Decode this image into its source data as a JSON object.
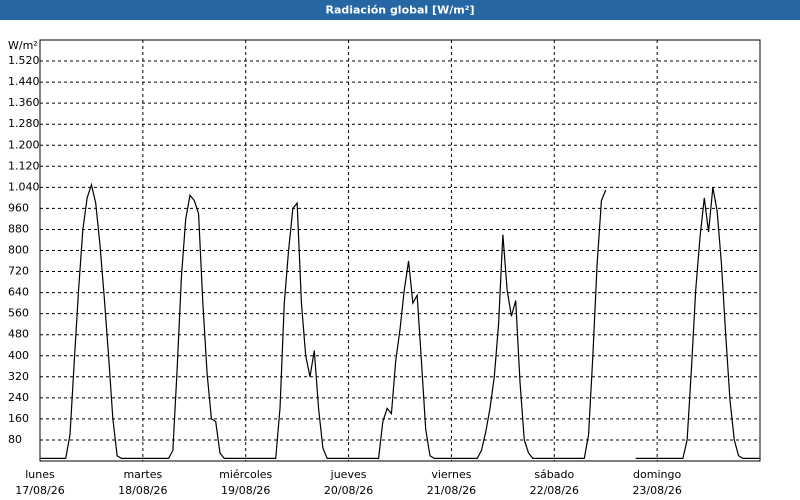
{
  "chart_data": {
    "type": "line",
    "title": "Radiación global [W/m²]",
    "y_label": "W/m²",
    "x": [
      0,
      1,
      2,
      3,
      4,
      5,
      6,
      7,
      8,
      9,
      10,
      11,
      12,
      13,
      14,
      15,
      16,
      17,
      18,
      19,
      20,
      21,
      22,
      23,
      24,
      25,
      26,
      27,
      28,
      29,
      30,
      31,
      32,
      33,
      34,
      35,
      36,
      37,
      38,
      39,
      40,
      41,
      42,
      43,
      44,
      45,
      46,
      47,
      48,
      49,
      50,
      51,
      52,
      53,
      54,
      55,
      56,
      57,
      58,
      59,
      60,
      61,
      62,
      63,
      64,
      65,
      66,
      67,
      68,
      69,
      70,
      71,
      72,
      73,
      74,
      75,
      76,
      77,
      78,
      79,
      80,
      81,
      82,
      83,
      84,
      85,
      86,
      87,
      88,
      89,
      90,
      91,
      92,
      93,
      94,
      95,
      96,
      97,
      98,
      99,
      100,
      101,
      102,
      103,
      104,
      105,
      106,
      107,
      108,
      109,
      110,
      111,
      112,
      113,
      114,
      115,
      116,
      117,
      118,
      119,
      120,
      121,
      122,
      123,
      124,
      125,
      126,
      127,
      128,
      129,
      130,
      131,
      132,
      133,
      134,
      135,
      136,
      137,
      138,
      139,
      140,
      141,
      142,
      143,
      144,
      145,
      146,
      147,
      148,
      149,
      150,
      151,
      152,
      153,
      154,
      155,
      156,
      157,
      158,
      159,
      160,
      161,
      162,
      163,
      164,
      165,
      166,
      167,
      168
    ],
    "series": [
      {
        "name": "Radiación global",
        "color": "#000000",
        "values": [
          10,
          10,
          10,
          10,
          10,
          10,
          10,
          100,
          380,
          650,
          880,
          1000,
          1050,
          980,
          820,
          620,
          400,
          160,
          20,
          10,
          10,
          10,
          10,
          10,
          10,
          10,
          10,
          10,
          10,
          10,
          10,
          40,
          350,
          700,
          920,
          1010,
          990,
          940,
          600,
          330,
          160,
          150,
          30,
          10,
          10,
          10,
          10,
          10,
          10,
          10,
          10,
          10,
          10,
          10,
          10,
          10,
          200,
          600,
          800,
          960,
          980,
          600,
          400,
          320,
          420,
          200,
          50,
          10,
          10,
          10,
          10,
          10,
          10,
          10,
          10,
          10,
          10,
          10,
          10,
          10,
          150,
          200,
          180,
          380,
          500,
          650,
          760,
          600,
          630,
          380,
          120,
          20,
          10,
          10,
          10,
          10,
          10,
          10,
          10,
          10,
          10,
          10,
          10,
          40,
          110,
          200,
          320,
          520,
          860,
          650,
          550,
          610,
          300,
          80,
          30,
          10,
          10,
          10,
          10,
          10,
          10,
          10,
          10,
          10,
          10,
          10,
          10,
          10,
          100,
          400,
          750,
          990,
          1030,
          null,
          null,
          null,
          null,
          null,
          null,
          10,
          10,
          10,
          10,
          10,
          10,
          10,
          10,
          10,
          10,
          10,
          10,
          80,
          350,
          650,
          850,
          1000,
          870,
          1040,
          950,
          750,
          480,
          230,
          80,
          20,
          10,
          10,
          10,
          10,
          10
        ]
      }
    ],
    "xlim": [
      0,
      168
    ],
    "xticks": [
      {
        "value": 0,
        "day": "lunes",
        "date": "17/08/26"
      },
      {
        "value": 24,
        "day": "martes",
        "date": "18/08/26"
      },
      {
        "value": 48,
        "day": "miércoles",
        "date": "19/08/26"
      },
      {
        "value": 72,
        "day": "jueves",
        "date": "20/08/26"
      },
      {
        "value": 96,
        "day": "viernes",
        "date": "21/08/26"
      },
      {
        "value": 120,
        "day": "sábado",
        "date": "22/08/26"
      },
      {
        "value": 144,
        "day": "domingo",
        "date": "23/08/26"
      }
    ],
    "ylim": [
      0,
      1600
    ],
    "yticks": [
      80,
      160,
      240,
      320,
      400,
      480,
      560,
      640,
      720,
      800,
      880,
      960,
      {
        "value": 1040,
        "label": "1.040"
      },
      {
        "value": 1120,
        "label": "1.120"
      },
      {
        "value": 1200,
        "label": "1.200"
      },
      {
        "value": 1280,
        "label": "1.280"
      },
      {
        "value": 1360,
        "label": "1.360"
      },
      {
        "value": 1440,
        "label": "1.440"
      },
      {
        "value": 1520,
        "label": "1.520"
      }
    ],
    "grid": true
  }
}
